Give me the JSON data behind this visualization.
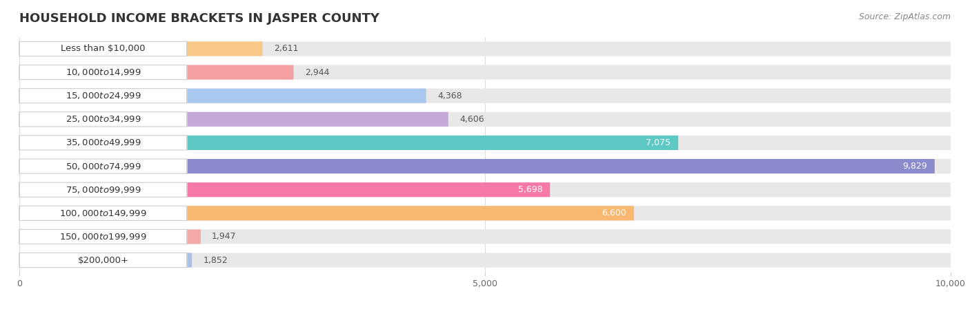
{
  "title": "HOUSEHOLD INCOME BRACKETS IN JASPER COUNTY",
  "source": "Source: ZipAtlas.com",
  "categories": [
    "Less than $10,000",
    "$10,000 to $14,999",
    "$15,000 to $24,999",
    "$25,000 to $34,999",
    "$35,000 to $49,999",
    "$50,000 to $74,999",
    "$75,000 to $99,999",
    "$100,000 to $149,999",
    "$150,000 to $199,999",
    "$200,000+"
  ],
  "values": [
    2611,
    2944,
    4368,
    4606,
    7075,
    9829,
    5698,
    6600,
    1947,
    1852
  ],
  "bar_colors": [
    "#F9C98A",
    "#F4A0A0",
    "#A8C8F0",
    "#C4A8D8",
    "#5EC8C4",
    "#8A8ACC",
    "#F878A8",
    "#F8B870",
    "#F4A8A8",
    "#A8C0E8"
  ],
  "xlim": [
    0,
    10000
  ],
  "xticks": [
    0,
    5000,
    10000
  ],
  "xticklabels": [
    "0",
    "5,000",
    "10,000"
  ],
  "value_color_dark": "#555555",
  "value_color_light": "#ffffff",
  "bg_color": "#ffffff",
  "bar_bg_color": "#e8e8e8",
  "title_fontsize": 13,
  "label_fontsize": 9.5,
  "value_fontsize": 9,
  "source_fontsize": 9
}
